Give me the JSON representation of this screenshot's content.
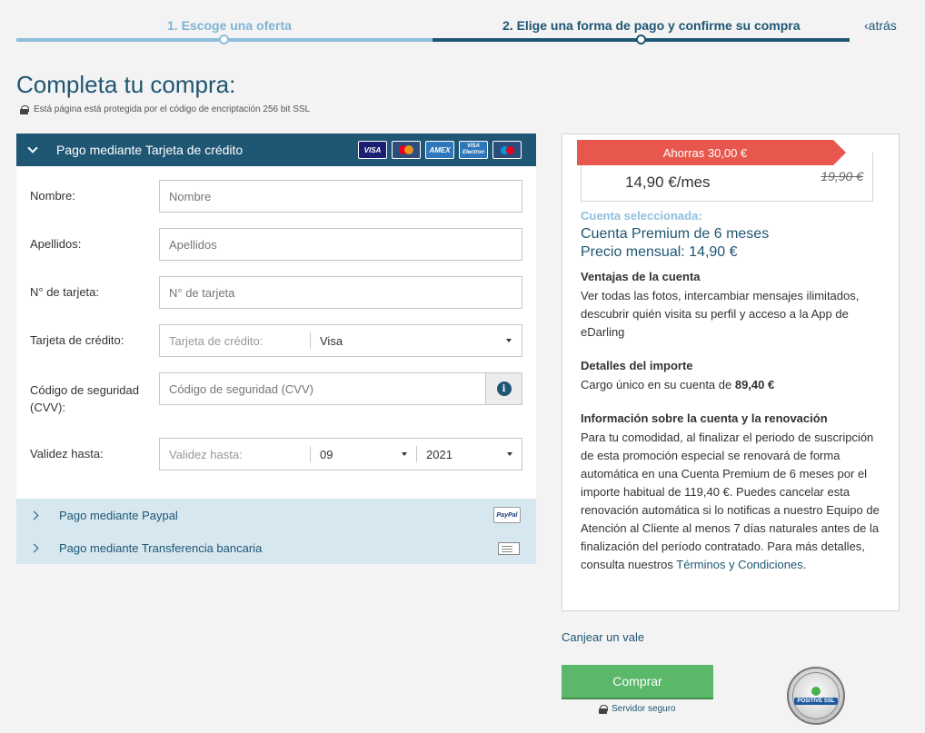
{
  "steps": {
    "step1": "1. Escoge una oferta",
    "step2": "2. Elige una forma de pago y confirme su compra",
    "back": "atrás"
  },
  "page": {
    "title": "Completa tu compra:",
    "ssl_note": "Está página está protegida por el código de encriptación 256 bit SSL"
  },
  "credit_card": {
    "header": "Pago mediante Tarjeta de crédito",
    "card_logos": [
      "VISA",
      "MasterCard",
      "AMEX",
      "VISA Electron",
      "Maestro"
    ],
    "nombre_label": "Nombre:",
    "nombre_placeholder": "Nombre",
    "apellidos_label": "Apellidos:",
    "apellidos_placeholder": "Apellidos",
    "tarjeta_label": "N° de tarjeta:",
    "tarjeta_placeholder": "N° de tarjeta",
    "tipo_label": "Tarjeta de crédito:",
    "tipo_inner_label": "Tarjeta de crédito:",
    "tipo_value": "Visa",
    "cvv_label": "Código de seguridad (CVV):",
    "cvv_placeholder": "Código de seguridad (CVV)",
    "validez_label": "Validez hasta:",
    "validez_inner_label": "Validez hasta:",
    "validez_month": "09",
    "validez_year": "2021"
  },
  "alt_payments": {
    "paypal": "Pago mediante Paypal",
    "paypal_logo": "PayPal",
    "transfer": "Pago mediante Transferencia bancaria"
  },
  "summary": {
    "savings": "Ahorras 30,00 €",
    "price_now": "14,90 €/mes",
    "price_old": "19,90 €",
    "selected_label": "Cuenta seleccionada:",
    "plan_name": "Cuenta Premium de 6 meses",
    "plan_price": "Precio mensual: 14,90 €",
    "ventajas_title": "Ventajas de la cuenta",
    "ventajas_body": "Ver todas las fotos, intercambiar mensajes ilimitados, descubrir quién visita su perfil y acceso a la App de eDarling",
    "detalles_title": "Detalles del importe",
    "detalles_prefix": "Cargo único en su cuenta de ",
    "detalles_amount": "89,40 €",
    "info_title": "Información sobre la cuenta y la renovación",
    "info_body": "Para tu comodidad, al finalizar el periodo de suscripción de esta promoción especial se renovará de forma automática en una Cuenta Premium de 6 meses por el importe habitual de 119,40 €. Puedes cancelar esta renovación automática si lo notificas a nuestro Equipo de Atención al Cliente al menos 7 días naturales antes de la finalización del período contratado. Para más detalles, consulta nuestros ",
    "terms_link": "Términos y Condiciones",
    "terms_suffix": "."
  },
  "actions": {
    "voucher": "Canjear un vale",
    "buy": "Comprar",
    "secure_server": "Servidor seguro",
    "ssl_seal_text": "POSITIVE SSL"
  },
  "colors": {
    "primary": "#1e5673",
    "accent_light": "#8fbfdd",
    "savings_ribbon": "#e8574d",
    "buy_button": "#5bb86a",
    "alt_payment_bg": "#d7e7f0"
  }
}
